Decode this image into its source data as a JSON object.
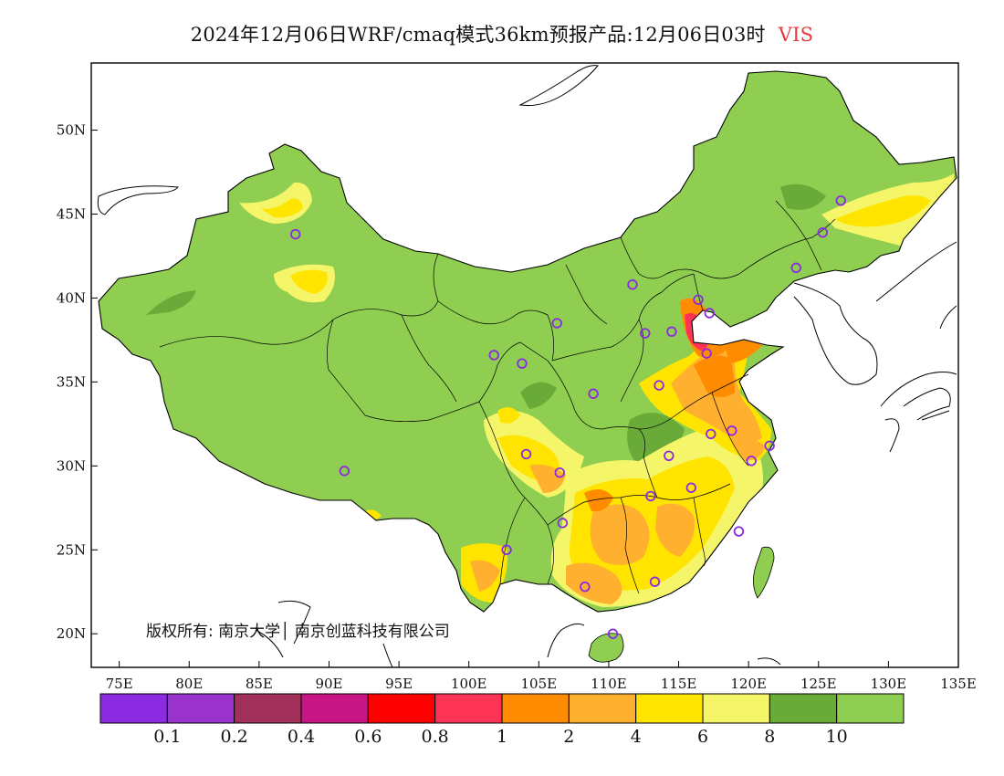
{
  "title": {
    "main": "2024年12月06日WRF/cmaq模式36km预报产品:12月06日03时",
    "variable": "VIS"
  },
  "map": {
    "projection": "lat-lon",
    "lon_range": [
      73,
      135
    ],
    "lat_range": [
      18,
      54
    ],
    "lat_ticks": [
      "50N",
      "45N",
      "40N",
      "35N",
      "30N",
      "25N",
      "20N"
    ],
    "lon_ticks": [
      "75E",
      "80E",
      "85E",
      "90E",
      "95E",
      "100E",
      "105E",
      "110E",
      "115E",
      "120E",
      "125E",
      "130E",
      "135E"
    ],
    "copyright": "版权所有: 南京大学│ 南京创蓝科技有限公司",
    "stations": [
      {
        "lon": 87.6,
        "lat": 43.8
      },
      {
        "lon": 91.1,
        "lat": 29.7
      },
      {
        "lon": 101.8,
        "lat": 36.6
      },
      {
        "lon": 103.8,
        "lat": 36.1
      },
      {
        "lon": 106.3,
        "lat": 38.5
      },
      {
        "lon": 111.7,
        "lat": 40.8
      },
      {
        "lon": 112.6,
        "lat": 37.9
      },
      {
        "lon": 114.5,
        "lat": 38.0
      },
      {
        "lon": 116.4,
        "lat": 39.9
      },
      {
        "lon": 117.2,
        "lat": 39.1
      },
      {
        "lon": 117.0,
        "lat": 36.7
      },
      {
        "lon": 113.6,
        "lat": 34.8
      },
      {
        "lon": 108.9,
        "lat": 34.3
      },
      {
        "lon": 104.1,
        "lat": 30.7
      },
      {
        "lon": 106.5,
        "lat": 29.6
      },
      {
        "lon": 114.3,
        "lat": 30.6
      },
      {
        "lon": 117.3,
        "lat": 31.9
      },
      {
        "lon": 118.8,
        "lat": 32.1
      },
      {
        "lon": 121.5,
        "lat": 31.2
      },
      {
        "lon": 120.2,
        "lat": 30.3
      },
      {
        "lon": 115.9,
        "lat": 28.7
      },
      {
        "lon": 113.0,
        "lat": 28.2
      },
      {
        "lon": 119.3,
        "lat": 26.1
      },
      {
        "lon": 106.7,
        "lat": 26.6
      },
      {
        "lon": 102.7,
        "lat": 25.0
      },
      {
        "lon": 108.3,
        "lat": 22.8
      },
      {
        "lon": 113.3,
        "lat": 23.1
      },
      {
        "lon": 110.3,
        "lat": 20.0
      },
      {
        "lon": 123.4,
        "lat": 41.8
      },
      {
        "lon": 125.3,
        "lat": 43.9
      },
      {
        "lon": 126.6,
        "lat": 45.8
      }
    ]
  },
  "legend": {
    "colors": [
      "#8b2be2",
      "#9a32cd",
      "#a0305a",
      "#c71585",
      "#ff0000",
      "#ff3355",
      "#ff8c00",
      "#ffb02e",
      "#ffe400",
      "#f5f56a",
      "#6aaa38",
      "#8fce50"
    ],
    "labels": [
      "0.1",
      "0.2",
      "0.4",
      "0.6",
      "0.8",
      "1",
      "2",
      "4",
      "6",
      "8",
      "10"
    ]
  },
  "colors": {
    "background_land": "#8fce50",
    "dark_green": "#6aaa38",
    "yellow": "#ffe400",
    "light_yellow": "#f5f56a",
    "orange": "#ffb02e",
    "dark_orange": "#ff8c00",
    "red": "#ff3355",
    "station": "#8a2be2",
    "border": "#000000"
  }
}
